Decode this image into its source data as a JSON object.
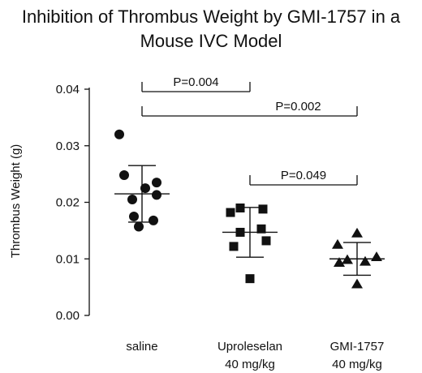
{
  "chart_data": {
    "type": "scatter",
    "title_lines": [
      "Inhibition of Thrombus Weight by GMI-1757 in a",
      "Mouse IVC Model"
    ],
    "ylabel": "Thrombus Weight (g)",
    "xlabel": "",
    "ylim": [
      0,
      0.04
    ],
    "yticks": [
      0,
      0.01,
      0.02,
      0.03,
      0.04
    ],
    "ytick_labels": [
      "0.00",
      "0.01",
      "0.02",
      "0.03",
      "0.04"
    ],
    "categories": [
      {
        "lines": [
          "saline"
        ],
        "marker": "circle",
        "values": [
          0.032,
          0.0248,
          0.0235,
          0.0225,
          0.0213,
          0.0205,
          0.0175,
          0.0168,
          0.0157
        ],
        "mean": 0.0215,
        "sd": 0.005
      },
      {
        "lines": [
          "Uproleselan",
          "40 mg/kg"
        ],
        "marker": "square",
        "values": [
          0.019,
          0.0188,
          0.0182,
          0.0153,
          0.0147,
          0.0132,
          0.0122,
          0.0065
        ],
        "mean": 0.0147,
        "sd": 0.0044
      },
      {
        "lines": [
          "GMI-1757",
          "40 mg/kg"
        ],
        "marker": "triangle",
        "values": [
          0.0145,
          0.0125,
          0.0103,
          0.0098,
          0.0095,
          0.0093,
          0.0055
        ],
        "mean": 0.01,
        "sd": 0.0029
      }
    ],
    "comparisons": [
      {
        "from": 0,
        "to": 1,
        "label": "P=0.004"
      },
      {
        "from": 0,
        "to": 2,
        "label": "P=0.002"
      },
      {
        "from": 1,
        "to": 2,
        "label": "P=0.049"
      }
    ],
    "colors": {
      "ink": "#111111",
      "background": "#ffffff"
    }
  }
}
